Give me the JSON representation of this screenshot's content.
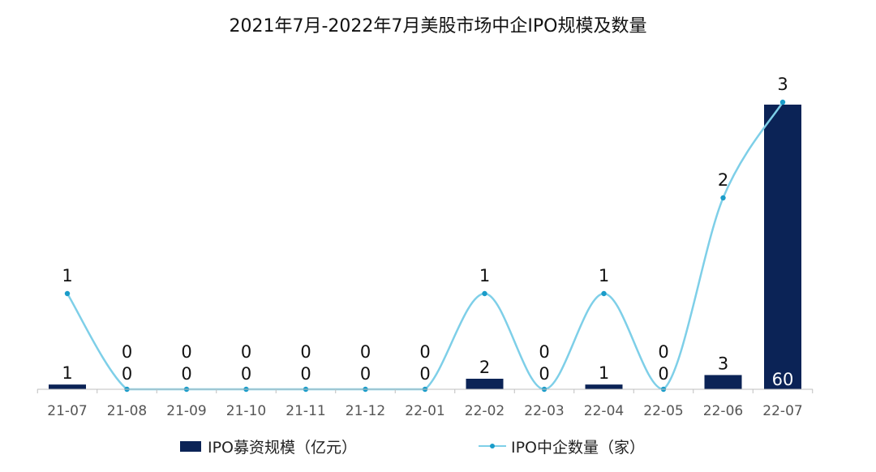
{
  "chart_data": {
    "type": "bar",
    "title": "2021年7月-2022年7月美股市场中企IPO规模及数量",
    "categories": [
      "21-07",
      "21-08",
      "21-09",
      "21-10",
      "21-11",
      "21-12",
      "22-01",
      "22-02",
      "22-03",
      "22-04",
      "22-05",
      "22-06",
      "22-07"
    ],
    "series": [
      {
        "name": "IPO募资规模（亿元）",
        "kind": "bar",
        "color": "#0b2356",
        "values": [
          1,
          0,
          0,
          0,
          0,
          0,
          0,
          2,
          0,
          1,
          0,
          3,
          60
        ],
        "labels": [
          "1",
          "0",
          "0",
          "0",
          "0",
          "0",
          "0",
          "2",
          "0",
          "1",
          "0",
          "3",
          "60"
        ]
      },
      {
        "name": "IPO中企数量（家）",
        "kind": "line",
        "color": "#7ecfe8",
        "marker_color": "#1a9cc9",
        "values": [
          1,
          0,
          0,
          0,
          0,
          0,
          0,
          1,
          0,
          1,
          0,
          2,
          3
        ],
        "labels": [
          "1",
          "0",
          "0",
          "0",
          "0",
          "0",
          "0",
          "1",
          "0",
          "1",
          "0",
          "2",
          "3"
        ]
      }
    ],
    "xlabel": "",
    "ylabel": "",
    "bar_ylim": [
      0,
      60
    ],
    "line_ylim": [
      0,
      3
    ],
    "grid": false,
    "legend": "bottom"
  }
}
